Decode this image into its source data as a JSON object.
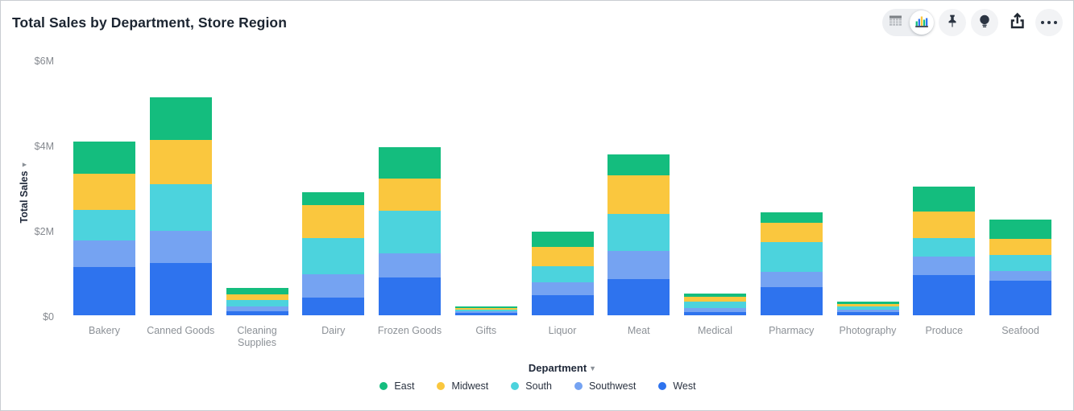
{
  "header": {
    "title": "Total Sales by Department, Store Region",
    "toolbar": {
      "view_toggle": {
        "table_icon": "table-view-icon",
        "chart_icon": "chart-view-icon",
        "selected": "chart"
      },
      "buttons": [
        "pin-icon",
        "lightbulb-icon",
        "share-icon",
        "more-options-icon"
      ]
    }
  },
  "chart_data": {
    "type": "bar",
    "stacked": true,
    "title": "Total Sales by Department, Store Region",
    "xlabel": "Department",
    "ylabel": "Total Sales",
    "units": "USD, millions",
    "ylim_millions": [
      0,
      6
    ],
    "grid": false,
    "legend_position": "bottom",
    "y_ticks": [
      {
        "label": "$0",
        "value": 0
      },
      {
        "label": "$2M",
        "value": 2
      },
      {
        "label": "$4M",
        "value": 4
      },
      {
        "label": "$6M",
        "value": 6
      }
    ],
    "categories": [
      "Bakery",
      "Canned Goods",
      "Cleaning Supplies",
      "Dairy",
      "Frozen Goods",
      "Gifts",
      "Liquor",
      "Meat",
      "Medical",
      "Pharmacy",
      "Photography",
      "Produce",
      "Seafood"
    ],
    "stack_order_bottom_to_top": [
      "West",
      "Southwest",
      "South",
      "Midwest",
      "East"
    ],
    "series": [
      {
        "name": "East",
        "color": "#14bd7e",
        "values": [
          0.76,
          1.0,
          0.16,
          0.29,
          0.74,
          0.04,
          0.36,
          0.49,
          0.07,
          0.25,
          0.05,
          0.58,
          0.45
        ]
      },
      {
        "name": "Midwest",
        "color": "#fac73e",
        "values": [
          0.85,
          1.04,
          0.14,
          0.77,
          0.75,
          0.04,
          0.45,
          0.91,
          0.12,
          0.45,
          0.06,
          0.62,
          0.38
        ]
      },
      {
        "name": "South",
        "color": "#4cd3dd",
        "values": [
          0.72,
          1.09,
          0.14,
          0.85,
          1.0,
          0.04,
          0.38,
          0.87,
          0.15,
          0.7,
          0.08,
          0.45,
          0.38
        ]
      },
      {
        "name": "Southwest",
        "color": "#75a3f2",
        "values": [
          0.62,
          0.75,
          0.12,
          0.55,
          0.57,
          0.04,
          0.3,
          0.66,
          0.09,
          0.36,
          0.06,
          0.43,
          0.23
        ]
      },
      {
        "name": "West",
        "color": "#2e73ee",
        "values": [
          1.13,
          1.23,
          0.09,
          0.42,
          0.89,
          0.05,
          0.47,
          0.85,
          0.08,
          0.66,
          0.07,
          0.94,
          0.81
        ]
      }
    ]
  }
}
